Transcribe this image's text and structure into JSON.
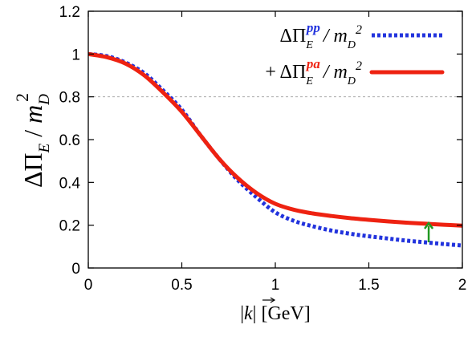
{
  "chart_data": {
    "type": "line",
    "xlabel": "|k⃗|  [GeV]",
    "xlabel_parts": {
      "k": "k",
      "unit": "[GeV]"
    },
    "ylabel_parts": {
      "delta_pi": "ΔΠ",
      "sub_e": "E",
      "slash": " / ",
      "m": "m",
      "sub_d": "D",
      "sup_2": "2"
    },
    "xlim": [
      0,
      2
    ],
    "ylim": [
      0,
      1.2
    ],
    "x_ticks": [
      "0",
      "0.5",
      "1",
      "1.5",
      "2"
    ],
    "x_tick_values": [
      0,
      0.5,
      1,
      1.5,
      2
    ],
    "y_ticks": [
      "0",
      "0.2",
      "0.4",
      "0.6",
      "0.8",
      "1",
      "1.2"
    ],
    "y_tick_values": [
      0,
      0.2,
      0.4,
      0.6,
      0.8,
      1.0,
      1.2
    ],
    "reference_line": {
      "y": 0.8,
      "style": "dashed",
      "color": "#aaaaaa"
    },
    "legend_position": "top-right",
    "grid": false,
    "series": [
      {
        "key": "pp",
        "legend": {
          "prefix": "",
          "delta": "ΔΠ",
          "sub": "E",
          "sup": "pp",
          "rest": "/ m",
          "rest_sub": "D",
          "rest_sup": "2"
        },
        "color": "#2233dd",
        "style": "dotted",
        "x": [
          0,
          0.1,
          0.2,
          0.3,
          0.4,
          0.5,
          0.6,
          0.7,
          0.8,
          0.9,
          1.0,
          1.1,
          1.2,
          1.3,
          1.4,
          1.5,
          1.6,
          1.7,
          1.8,
          1.9,
          2.0
        ],
        "y": [
          1.0,
          0.99,
          0.96,
          0.91,
          0.83,
          0.74,
          0.62,
          0.51,
          0.41,
          0.33,
          0.26,
          0.22,
          0.195,
          0.175,
          0.16,
          0.148,
          0.138,
          0.128,
          0.12,
          0.112,
          0.105
        ]
      },
      {
        "key": "pa",
        "legend": {
          "prefix": "+ ",
          "delta": "ΔΠ",
          "sub": "E",
          "sup": "pa",
          "rest": "/ m",
          "rest_sub": "D",
          "rest_sup": "2"
        },
        "color": "#ee2211",
        "style": "solid",
        "x": [
          0,
          0.1,
          0.2,
          0.3,
          0.4,
          0.5,
          0.6,
          0.7,
          0.8,
          0.9,
          1.0,
          1.1,
          1.2,
          1.3,
          1.4,
          1.5,
          1.6,
          1.7,
          1.8,
          1.9,
          2.0
        ],
        "y": [
          1.0,
          0.985,
          0.955,
          0.9,
          0.82,
          0.73,
          0.62,
          0.51,
          0.42,
          0.35,
          0.3,
          0.272,
          0.255,
          0.243,
          0.233,
          0.225,
          0.218,
          0.212,
          0.207,
          0.202,
          0.198
        ]
      }
    ],
    "annotation": {
      "type": "arrow",
      "color": "#229922",
      "x": 1.82,
      "y_from": 0.12,
      "y_to": 0.21
    }
  }
}
